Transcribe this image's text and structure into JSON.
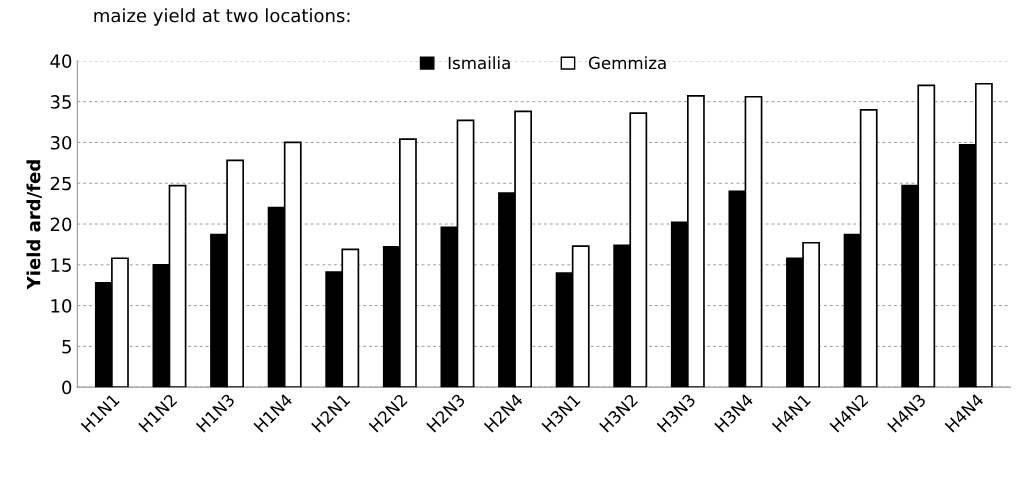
{
  "chart_data": {
    "type": "bar",
    "title": "maize yield at two locations:",
    "ylabel": "Yield ard/fed",
    "categories": [
      "H1N1",
      "H1N2",
      "H1N3",
      "H1N4",
      "H2N1",
      "H2N2",
      "H2N3",
      "H2N4",
      "H3N1",
      "H3N2",
      "H3N3",
      "H3N4",
      "H4N1",
      "H4N2",
      "H4N3",
      "H4N4"
    ],
    "series": [
      {
        "name": "Ismailia",
        "color": "#000000",
        "values": [
          12.8,
          15.0,
          18.7,
          22.0,
          14.1,
          17.2,
          19.6,
          23.8,
          14.0,
          17.4,
          20.2,
          24.0,
          15.8,
          18.7,
          24.7,
          29.7
        ]
      },
      {
        "name": "Gemmiza",
        "color": "#ffffff",
        "values": [
          15.8,
          24.7,
          27.8,
          30.0,
          16.9,
          30.4,
          32.7,
          33.8,
          17.3,
          33.6,
          35.7,
          35.6,
          17.7,
          34.0,
          37.0,
          37.2
        ]
      }
    ],
    "ylim": [
      0,
      40
    ],
    "yticks": [
      0,
      5,
      10,
      15,
      20,
      25,
      30,
      35,
      40
    ],
    "grid": "y",
    "legend": "top"
  }
}
